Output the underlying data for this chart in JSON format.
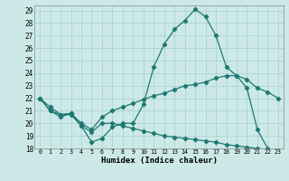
{
  "xlabel": "Humidex (Indice chaleur)",
  "xlim": [
    -0.5,
    23.5
  ],
  "ylim": [
    18,
    29.4
  ],
  "xticks": [
    0,
    1,
    2,
    3,
    4,
    5,
    6,
    7,
    8,
    9,
    10,
    11,
    12,
    13,
    14,
    15,
    16,
    17,
    18,
    19,
    20,
    21,
    22,
    23
  ],
  "yticks": [
    18,
    19,
    20,
    21,
    22,
    23,
    24,
    25,
    26,
    27,
    28,
    29
  ],
  "background_color": "#cce9e8",
  "grid_color": "#aad4d2",
  "line_color": "#1f7872",
  "line1_x": [
    0,
    1,
    2,
    3,
    4,
    5,
    6,
    7,
    8,
    9,
    10,
    11,
    12,
    13,
    14,
    15,
    16,
    17,
    18,
    19,
    20,
    21,
    22,
    23
  ],
  "line1_y": [
    22.0,
    21.3,
    20.7,
    20.7,
    19.8,
    18.5,
    18.8,
    19.7,
    20.0,
    20.0,
    21.5,
    24.5,
    26.3,
    27.5,
    28.2,
    29.1,
    28.5,
    27.0,
    24.5,
    23.8,
    22.8,
    19.5,
    18.0,
    17.8
  ],
  "line2_x": [
    0,
    1,
    2,
    3,
    4,
    5,
    6,
    7,
    8,
    9,
    10,
    11,
    12,
    13,
    14,
    15,
    16,
    17,
    18,
    19,
    20,
    21,
    22,
    23
  ],
  "line2_y": [
    22.0,
    21.0,
    20.5,
    20.8,
    19.8,
    19.3,
    20.0,
    20.0,
    19.8,
    19.6,
    19.4,
    19.2,
    19.0,
    18.9,
    18.8,
    18.7,
    18.6,
    18.5,
    18.3,
    18.2,
    18.1,
    18.0,
    17.9,
    17.8
  ],
  "line3_x": [
    0,
    1,
    2,
    3,
    4,
    5,
    6,
    7,
    8,
    9,
    10,
    11,
    12,
    13,
    14,
    15,
    16,
    17,
    18,
    19,
    20,
    21,
    22,
    23
  ],
  "line3_y": [
    22.0,
    21.0,
    20.7,
    20.8,
    20.0,
    19.5,
    20.5,
    21.0,
    21.3,
    21.6,
    21.9,
    22.2,
    22.4,
    22.7,
    23.0,
    23.1,
    23.3,
    23.6,
    23.8,
    23.8,
    23.5,
    22.8,
    22.5,
    22.0
  ]
}
